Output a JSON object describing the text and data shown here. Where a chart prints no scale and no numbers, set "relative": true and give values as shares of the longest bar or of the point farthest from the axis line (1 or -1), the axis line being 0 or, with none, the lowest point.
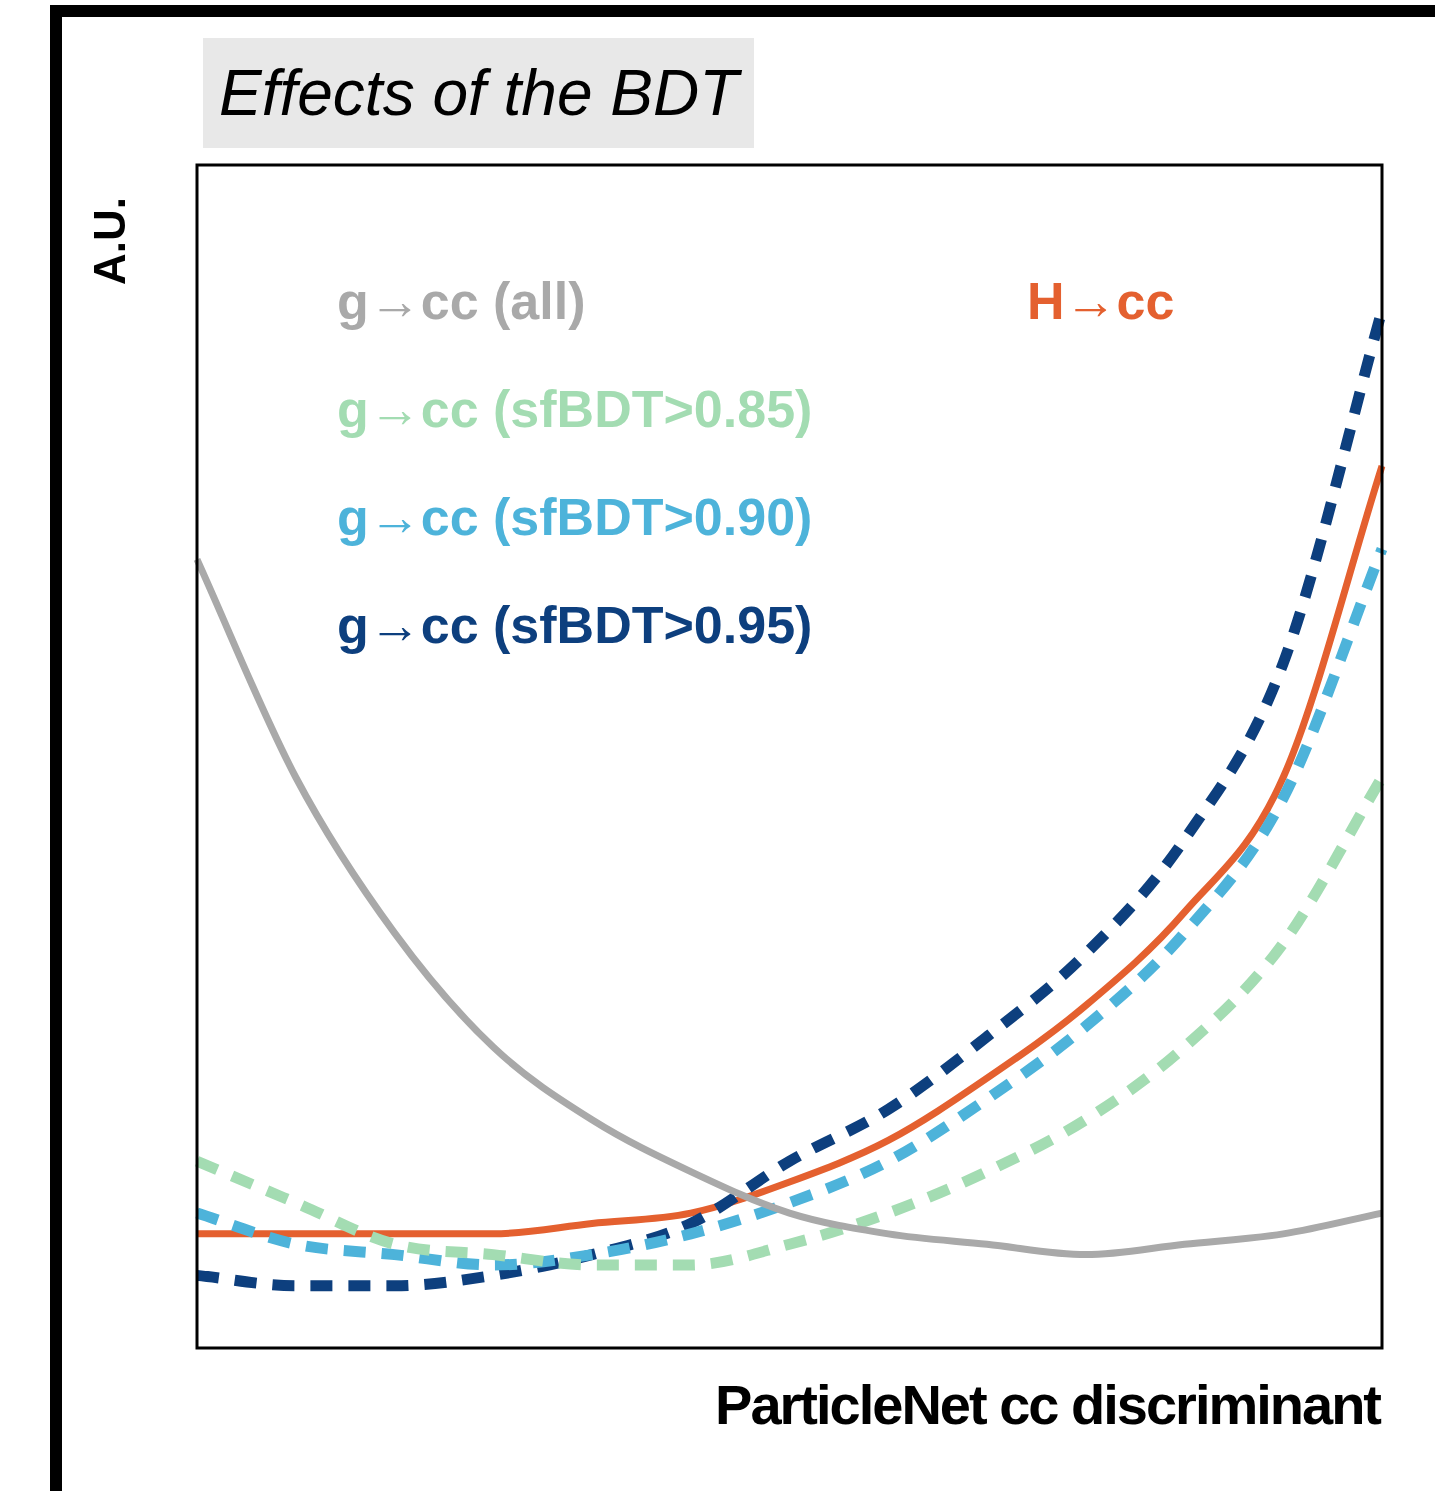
{
  "chart_data": {
    "type": "line",
    "title": "Effects of the BDT",
    "xlabel": "ParticleNet cc discriminant",
    "ylabel": "A.U.",
    "relative": true,
    "tick_labels": false,
    "grid": false,
    "legend": "top left",
    "marker": "none",
    "categories": [
      null,
      null,
      null,
      null,
      null,
      null,
      null,
      null,
      null,
      null,
      null,
      null,
      null
    ],
    "series": [
      {
        "name": "g→cc (all)",
        "color": "#a9a9a9",
        "line_style": "solid",
        "values": [
          0.76,
          0.55,
          0.4,
          0.29,
          0.22,
          0.17,
          0.13,
          0.11,
          0.1,
          0.09,
          0.1,
          0.11,
          0.13
        ]
      },
      {
        "name": "g→cc (sfBDT>0.85)",
        "color": "#a3dcb2",
        "line_style": "dashed",
        "values": [
          0.18,
          0.14,
          0.1,
          0.09,
          0.08,
          0.08,
          0.1,
          0.13,
          0.17,
          0.22,
          0.29,
          0.39,
          0.55
        ]
      },
      {
        "name": "g→cc (sfBDT>0.90)",
        "color": "#4db3da",
        "line_style": "dashed",
        "values": [
          0.13,
          0.1,
          0.09,
          0.08,
          0.09,
          0.11,
          0.14,
          0.18,
          0.24,
          0.31,
          0.4,
          0.53,
          0.77
        ]
      },
      {
        "name": "g→cc (sfBDT>0.95)",
        "color": "#0d3f7e",
        "line_style": "dashed",
        "values": [
          0.07,
          0.06,
          0.06,
          0.07,
          0.09,
          0.12,
          0.18,
          0.23,
          0.3,
          0.38,
          0.49,
          0.66,
          1
        ]
      },
      {
        "name": "H→cc",
        "color": "#e4602f",
        "line_style": "solid",
        "values": [
          0.11,
          0.11,
          0.11,
          0.11,
          0.12,
          0.13,
          0.16,
          0.2,
          0.26,
          0.33,
          0.42,
          0.55,
          0.85
        ]
      }
    ]
  }
}
